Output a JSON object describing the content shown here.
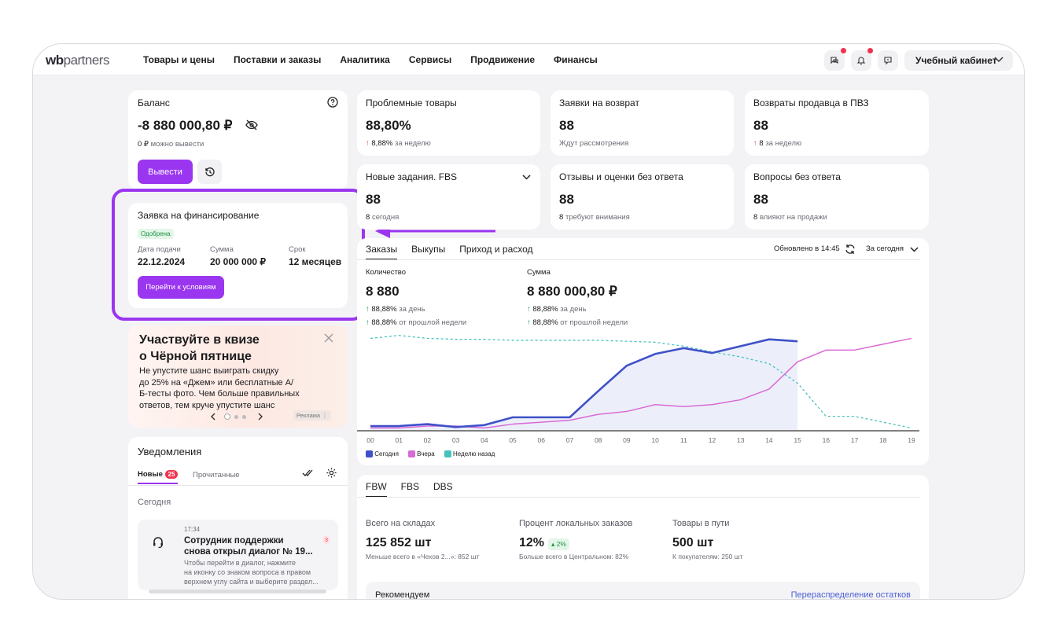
{
  "header": {
    "logo_bold": "wb",
    "logo_rest": "partners",
    "nav": [
      "Товары и цены",
      "Поставки и заказы",
      "Аналитика",
      "Сервисы",
      "Продвижение",
      "Финансы"
    ],
    "cabinet": "Учебный кабинет"
  },
  "balance": {
    "title": "Баланс",
    "value": "-8 880 000,80 ₽",
    "withdrawable_amount": "0 ₽",
    "withdrawable_text": "можно вывести",
    "withdraw_button": "Вывести"
  },
  "financing": {
    "title": "Заявка на финансирование",
    "status": "Одобрена",
    "date_label": "Дата подачи",
    "date": "22.12.2024",
    "sum_label": "Сумма",
    "sum": "20 000 000 ₽",
    "term_label": "Срок",
    "term": "12 месяцев",
    "button": "Перейти к условиям"
  },
  "promo": {
    "title_line1": "Участвуйте в квизе",
    "title_line2": "о Чёрной пятнице",
    "text_line1": "Не упустите шанс выиграть скидку",
    "text_line2": "до 25% на «Джем» или бесплатные А/",
    "text_line3": "Б-тесты фото. Чем больше правильных",
    "text_line4": "ответов, тем круче упустите шанс",
    "ad_label": "Реклама"
  },
  "notifications": {
    "title": "Уведомления",
    "tab_new": "Новые",
    "tab_new_count": "25",
    "tab_read": "Прочитанные",
    "section": "Сегодня",
    "item_time": "17:34",
    "item_title_line1": "Сотрудник поддержки",
    "item_title_line2": "снова открыл диалог № 19...",
    "item_count": "3",
    "item_text_line1": "Чтобы перейти в диалог, нажмите",
    "item_text_line2": "на иконку со знаком вопроса в правом",
    "item_text_line3": "верхнем углу сайта и выберите раздел..."
  },
  "stats": [
    {
      "title": "Проблемные товары",
      "value": "88,80%",
      "sub_value": "8,88%",
      "sub_text": "за неделю",
      "arrow": "up-red"
    },
    {
      "title": "Заявки на возврат",
      "value": "88",
      "sub_value": "",
      "sub_text": "Ждут рассмотрения",
      "arrow": ""
    },
    {
      "title": "Возвраты продавца в ПВЗ",
      "value": "88",
      "sub_value": "8",
      "sub_text": "за неделю",
      "arrow": "up-red"
    },
    {
      "title": "Новые задания. FBS",
      "value": "88",
      "sub_value": "8",
      "sub_text": "сегодня",
      "arrow": ""
    },
    {
      "title": "Отзывы и оценки без ответа",
      "value": "88",
      "sub_value": "8",
      "sub_text": "требуют внимания",
      "arrow": ""
    },
    {
      "title": "Вопросы без ответа",
      "value": "88",
      "sub_value": "8",
      "sub_text": "влияют на продажи",
      "arrow": ""
    }
  ],
  "orders": {
    "tabs": [
      "Заказы",
      "Выкупы",
      "Приход и расход"
    ],
    "updated": "Обновлено в 14:45",
    "period": "За сегодня",
    "qty_label": "Количество",
    "qty_value": "8 880",
    "sum_label": "Сумма",
    "sum_value": "8 880 000,80 ₽",
    "qty_day": "88,88%",
    "qty_week": "88,88%",
    "sum_day": "88,88%",
    "sum_week": "88,88%",
    "per_day": "за день",
    "per_week": "от прошлой недели"
  },
  "chart_data": {
    "type": "line",
    "x": [
      "00",
      "01",
      "02",
      "03",
      "04",
      "05",
      "06",
      "07",
      "08",
      "09",
      "10",
      "11",
      "12",
      "13",
      "14",
      "15",
      "16",
      "17",
      "18",
      "19"
    ],
    "series": [
      {
        "name": "Сегодня",
        "color": "#3f51c9",
        "values": [
          2,
          2,
          3,
          1.5,
          2.5,
          6.5,
          6.5,
          6.5,
          20,
          33,
          39,
          42,
          39.5,
          43,
          46.5,
          45.5,
          null,
          null,
          null,
          null
        ]
      },
      {
        "name": "Вчера",
        "color": "#d96ad6",
        "values": [
          1,
          1,
          2,
          2,
          1,
          3,
          4,
          5,
          8,
          9.5,
          13,
          12,
          13,
          15.5,
          21,
          35,
          41,
          41,
          44,
          47
        ]
      },
      {
        "name": "Неделю назад",
        "color": "#46c2bd",
        "values": [
          47,
          48.5,
          47,
          46.5,
          46.5,
          46,
          46,
          46,
          46,
          45.5,
          45,
          43,
          40,
          37.5,
          34,
          24,
          7,
          7,
          4,
          1
        ]
      }
    ],
    "ylim": [
      0,
      50
    ],
    "legend": "bottom-left"
  },
  "warehouse": {
    "tabs": [
      "FBW",
      "FBS",
      "DBS"
    ],
    "stock_label": "Всего на складах",
    "stock_value": "125 852 шт",
    "stock_sub": "Меньше всего в «Чехов 2...»: 852 шт",
    "local_label": "Процент локальных заказов",
    "local_value": "12%",
    "local_badge": "2%",
    "local_sub": "Больше всего в Центральном: 82%",
    "transit_label": "Товары в пути",
    "transit_value": "500 шт",
    "transit_sub": "К покупателям: 250 шт",
    "recommend": "Рекомендуем",
    "redistribute": "Перераспределение остатков"
  },
  "colors": {
    "accent": "#9b36f0",
    "chart_today": "#3f51c9",
    "chart_yesterday": "#d96ad6",
    "chart_week": "#46c2bd"
  }
}
